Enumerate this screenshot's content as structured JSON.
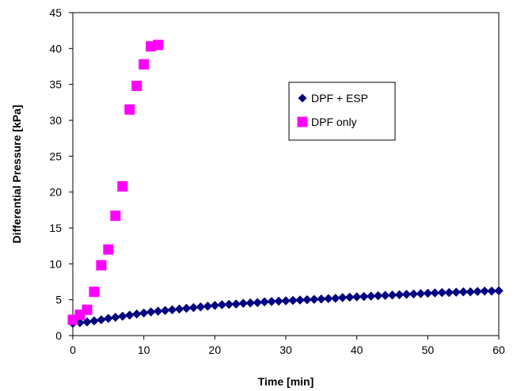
{
  "chart_data": {
    "type": "scatter",
    "title": "",
    "xlabel": "Time [min]",
    "ylabel": "Differential Pressure [kPa]",
    "xlim": [
      0,
      60
    ],
    "ylim": [
      0,
      45
    ],
    "xticks": [
      0,
      10,
      20,
      30,
      40,
      50,
      60
    ],
    "yticks": [
      0,
      5,
      10,
      15,
      20,
      25,
      30,
      35,
      40,
      45
    ],
    "grid": false,
    "legend": "inside-upper-right",
    "series": [
      {
        "name": "DPF + ESP",
        "marker": "diamond",
        "color": "#000080",
        "x": [
          0,
          1,
          2,
          3,
          4,
          5,
          6,
          7,
          8,
          9,
          10,
          11,
          12,
          13,
          14,
          15,
          16,
          17,
          18,
          19,
          20,
          21,
          22,
          23,
          24,
          25,
          26,
          27,
          28,
          29,
          30,
          31,
          32,
          33,
          34,
          35,
          36,
          37,
          38,
          39,
          40,
          41,
          42,
          43,
          44,
          45,
          46,
          47,
          48,
          49,
          50,
          51,
          52,
          53,
          54,
          55,
          56,
          57,
          58,
          59,
          60
        ],
        "y": [
          1.7,
          1.8,
          1.9,
          2.05,
          2.2,
          2.4,
          2.55,
          2.7,
          2.85,
          3.0,
          3.15,
          3.3,
          3.4,
          3.5,
          3.6,
          3.7,
          3.8,
          3.9,
          4.0,
          4.1,
          4.2,
          4.3,
          4.35,
          4.4,
          4.5,
          4.55,
          4.6,
          4.7,
          4.75,
          4.8,
          4.85,
          4.9,
          4.95,
          5.0,
          5.05,
          5.1,
          5.15,
          5.2,
          5.3,
          5.35,
          5.4,
          5.45,
          5.5,
          5.55,
          5.6,
          5.65,
          5.7,
          5.75,
          5.8,
          5.85,
          5.9,
          5.95,
          6.0,
          6.0,
          6.05,
          6.1,
          6.1,
          6.15,
          6.2,
          6.2,
          6.25
        ]
      },
      {
        "name": "DPF only",
        "marker": "square",
        "color": "#FF00FF",
        "x": [
          0,
          1,
          2,
          3,
          4,
          5,
          6,
          7,
          8,
          9,
          10,
          11,
          12
        ],
        "y": [
          2.2,
          2.9,
          3.6,
          6.1,
          9.8,
          12.0,
          16.7,
          20.8,
          31.5,
          34.8,
          37.8,
          40.3,
          40.5
        ]
      }
    ]
  }
}
